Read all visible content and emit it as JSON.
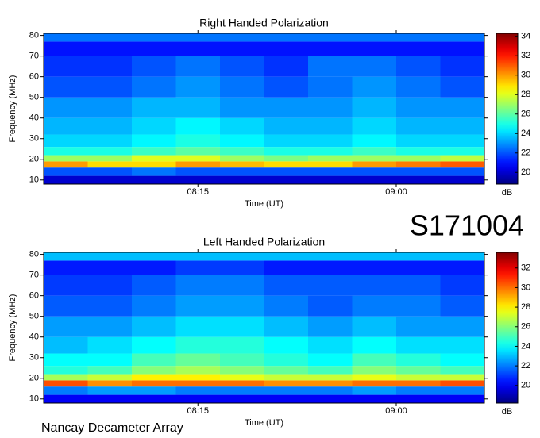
{
  "page_label": "S171004",
  "footer": "Nancay Decameter Array",
  "chart_data": [
    {
      "type": "heatmap",
      "title": "Right Handed Polarization",
      "x_label": "Time (UT)",
      "y_label": "Frequency (MHz)",
      "colorbar_label": "dB",
      "colormap": "jet",
      "xlim": [
        460,
        560
      ],
      "xticks": [
        {
          "value": 495,
          "label": "08:15"
        },
        {
          "value": 540,
          "label": "09:00"
        }
      ],
      "ylim": [
        8,
        81
      ],
      "yticks": [
        10,
        20,
        30,
        40,
        50,
        60,
        70,
        80
      ],
      "zlim": [
        18.8,
        34.3
      ],
      "zticks": [
        20,
        22,
        24,
        26,
        28,
        30,
        32,
        34
      ],
      "x_bins": [
        460,
        470,
        480,
        490,
        500,
        510,
        520,
        530,
        540,
        550,
        560
      ],
      "y_bins": [
        8,
        12,
        16,
        19,
        22,
        26,
        32,
        40,
        50,
        60,
        70,
        77,
        81
      ],
      "z": [
        [
          20,
          20,
          20,
          20,
          20,
          20,
          20,
          20,
          20,
          20
        ],
        [
          22,
          22,
          22.5,
          22,
          22,
          22,
          22,
          22,
          22,
          22
        ],
        [
          30,
          29,
          29,
          30,
          29.5,
          29,
          29,
          30,
          30.5,
          31
        ],
        [
          27,
          27,
          28,
          28,
          27,
          26.5,
          27,
          27,
          27,
          27.5
        ],
        [
          25,
          25,
          25.5,
          26,
          25.5,
          25,
          25,
          25.5,
          25,
          25
        ],
        [
          24,
          24,
          24.5,
          25,
          24.5,
          24,
          24,
          24.5,
          24,
          24
        ],
        [
          23.5,
          23.5,
          24,
          24.5,
          24,
          23.5,
          23.5,
          24,
          23.5,
          23.5
        ],
        [
          23,
          23,
          23.5,
          23.5,
          23,
          23,
          23,
          23.5,
          23,
          23
        ],
        [
          22,
          22,
          22.5,
          23,
          22.5,
          22,
          22.5,
          23,
          22.5,
          22
        ],
        [
          21.5,
          21.5,
          22,
          22.5,
          22,
          21.5,
          22.5,
          22.5,
          22,
          21.5
        ],
        [
          21,
          21,
          21,
          21,
          21,
          21,
          21,
          21,
          21,
          21
        ],
        [
          22.5,
          22.5,
          22.5,
          22.5,
          22.5,
          22.5,
          22.5,
          22.5,
          22.5,
          22.5
        ]
      ]
    },
    {
      "type": "heatmap",
      "title": "Left Handed Polarization",
      "x_label": "Time (UT)",
      "y_label": "Frequency (MHz)",
      "colorbar_label": "dB",
      "colormap": "jet",
      "xlim": [
        460,
        560
      ],
      "xticks": [
        {
          "value": 495,
          "label": "08:15"
        },
        {
          "value": 540,
          "label": "09:00"
        }
      ],
      "ylim": [
        8,
        81
      ],
      "yticks": [
        10,
        20,
        30,
        40,
        50,
        60,
        70,
        80
      ],
      "zlim": [
        18.2,
        33.6
      ],
      "zticks": [
        20,
        22,
        24,
        26,
        28,
        30,
        32
      ],
      "x_bins": [
        460,
        470,
        480,
        490,
        500,
        510,
        520,
        530,
        540,
        550,
        560
      ],
      "y_bins": [
        8,
        12,
        16,
        19,
        22,
        26,
        32,
        40,
        50,
        60,
        70,
        77,
        81
      ],
      "z": [
        [
          20,
          20,
          20,
          20,
          20,
          20,
          20,
          20,
          20,
          20
        ],
        [
          22,
          22.5,
          22.5,
          22,
          22,
          22,
          22,
          22.5,
          22,
          22
        ],
        [
          30.5,
          29.5,
          30,
          30,
          30,
          29.5,
          29.5,
          30,
          30,
          30.5
        ],
        [
          26.5,
          27,
          28,
          28,
          27.5,
          27,
          27,
          27.5,
          27,
          27
        ],
        [
          24.5,
          25,
          26,
          26.5,
          26,
          25.5,
          25,
          26,
          25.5,
          25
        ],
        [
          24,
          24,
          25,
          25.5,
          25,
          24.5,
          24,
          25,
          24.5,
          24
        ],
        [
          23,
          23.5,
          24,
          24.5,
          24.5,
          24,
          23.5,
          24,
          23.5,
          23.5
        ],
        [
          22.5,
          22.5,
          23,
          23.5,
          23.5,
          23,
          22.5,
          23,
          22.5,
          22.5
        ],
        [
          21.5,
          21.5,
          22,
          22.5,
          22.5,
          22,
          21.5,
          22,
          22,
          21.5
        ],
        [
          21,
          21,
          21.5,
          22,
          22,
          21.5,
          21.5,
          21.5,
          21.5,
          21
        ],
        [
          20.5,
          20.5,
          20.5,
          21,
          21,
          20.5,
          20.5,
          20.5,
          20.5,
          20.5
        ],
        [
          23,
          23,
          23,
          23,
          23,
          23,
          23,
          23,
          23,
          23
        ]
      ]
    }
  ]
}
